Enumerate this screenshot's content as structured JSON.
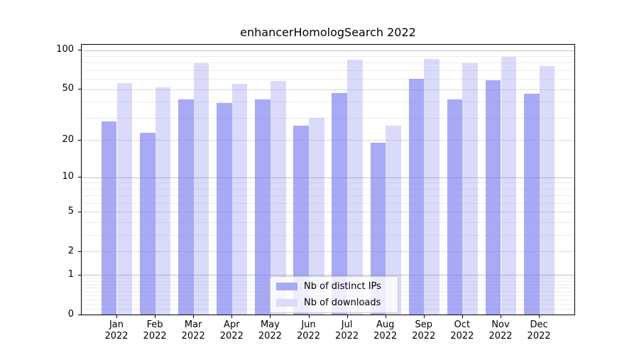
{
  "title": "enhancerHomologSearch 2022",
  "chart_data": {
    "type": "bar",
    "title": "enhancerHomologSearch 2022",
    "categories": [
      "Jan",
      "Feb",
      "Mar",
      "Apr",
      "May",
      "Jun",
      "Jul",
      "Aug",
      "Sep",
      "Oct",
      "Nov",
      "Dec"
    ],
    "x_year_label": "2022",
    "series": [
      {
        "name": "Nb of distinct IPs",
        "color": "#a8aaf4",
        "fill_rgba": "rgba(122,124,240,0.65)",
        "values": [
          28,
          23,
          42,
          39,
          42,
          26,
          47,
          19,
          60,
          42,
          59,
          46
        ]
      },
      {
        "name": "Nb of downloads",
        "color": "#dcddfa",
        "fill_rgba": "rgba(122,124,240,0.28)",
        "values": [
          56,
          52,
          79,
          55,
          58,
          30,
          85,
          26,
          86,
          79,
          89,
          76
        ]
      }
    ],
    "yscale": "log1p",
    "ylim": [
      0,
      110
    ],
    "yticks": [
      100,
      50,
      20,
      10,
      5,
      2,
      1,
      0
    ],
    "grid": true,
    "legend_position": "bottom-center"
  }
}
